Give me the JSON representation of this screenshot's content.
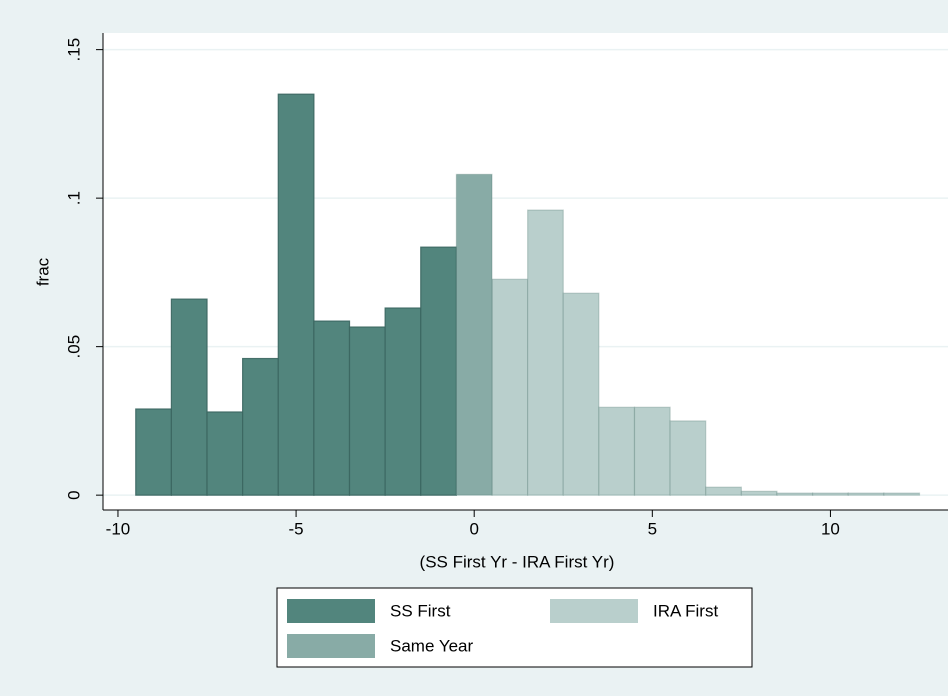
{
  "chart_data": {
    "type": "histogram",
    "xlabel": "(SS First Yr - IRA First Yr)",
    "ylabel": "frac",
    "xlim": [
      -10.42,
      13.3
    ],
    "ylim": [
      -0.005,
      0.1556
    ],
    "xticks": [
      -10,
      -5,
      0,
      5,
      10
    ],
    "yticks": [
      0,
      {
        "value": 0.05,
        "label": ".05"
      },
      {
        "value": 0.1,
        "label": ".1"
      },
      {
        "value": 0.15,
        "label": ".15"
      }
    ],
    "grid": true,
    "legend": "bottom",
    "series": [
      {
        "name": "SS First",
        "color": "#52857d",
        "bins": [
          -9.5,
          -8.5,
          -7.5,
          -6.5,
          -5.5,
          -4.5,
          -3.5,
          -2.5,
          -1.5,
          -0.5
        ],
        "values": [
          0.029,
          0.066,
          0.028,
          0.046,
          0.135,
          0.0586,
          0.0566,
          0.063,
          0.0835
        ]
      },
      {
        "name": "IRA First",
        "color": "#b9cfcc",
        "bins": [
          0.5,
          1.5,
          2.5,
          3.5,
          4.5,
          5.5,
          6.5,
          7.5,
          8.5,
          9.5,
          10.5,
          11.5,
          12.5
        ],
        "values": [
          0.0727,
          0.096,
          0.068,
          0.0296,
          0.0296,
          0.025,
          0.0027,
          0.0013,
          0.0007,
          0.0007,
          0.0007,
          0.0007
        ]
      },
      {
        "name": "Same Year",
        "color": "#88aba6",
        "bins": [
          -0.5,
          0.5
        ],
        "values": [
          0.108
        ]
      }
    ]
  }
}
